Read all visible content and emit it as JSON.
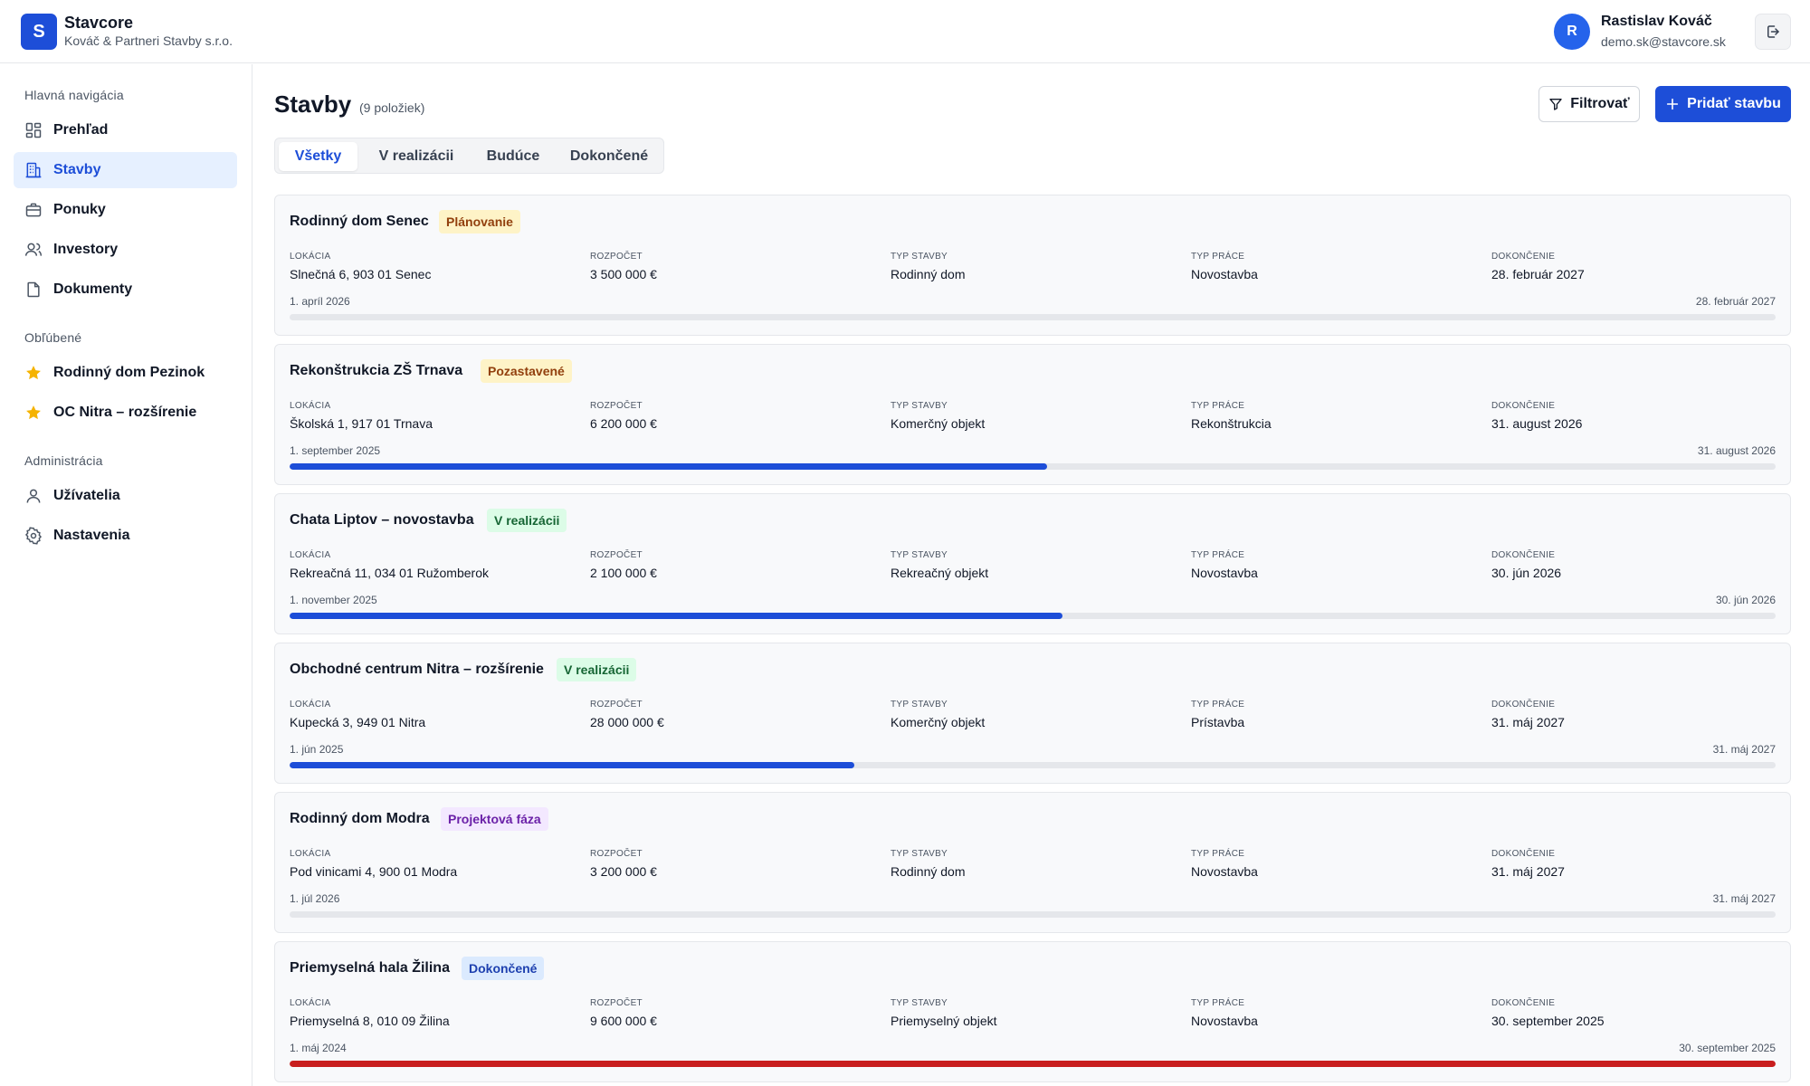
{
  "header": {
    "logo_letter": "S",
    "app_name": "Stavcore",
    "company": "Kováč & Partneri Stavby s.r.o.",
    "user_initial": "R",
    "user_name": "Rastislav Kováč",
    "user_email": "demo.sk@stavcore.sk",
    "logout_icon": "logout-icon"
  },
  "sidebar": {
    "sections": [
      {
        "label": "Hlavná navigácia",
        "items": [
          {
            "label": "Prehľad",
            "icon": "dashboard-icon",
            "active": false
          },
          {
            "label": "Stavby",
            "icon": "building-icon",
            "active": true
          },
          {
            "label": "Ponuky",
            "icon": "briefcase-icon",
            "active": false
          },
          {
            "label": "Investory",
            "icon": "users-icon",
            "active": false
          },
          {
            "label": "Dokumenty",
            "icon": "document-icon",
            "active": false
          }
        ]
      },
      {
        "label": "Obľúbené",
        "items": [
          {
            "label": "Rodinný dom Pezinok",
            "icon": "star-icon",
            "active": false
          },
          {
            "label": "OC Nitra – rozšírenie",
            "icon": "star-icon",
            "active": false
          }
        ]
      },
      {
        "label": "Administrácia",
        "items": [
          {
            "label": "Užívatelia",
            "icon": "user-icon",
            "active": false
          },
          {
            "label": "Nastavenia",
            "icon": "gear-icon",
            "active": false
          }
        ]
      }
    ]
  },
  "main": {
    "title": "Stavby",
    "count": "(9 položiek)",
    "filter_label": "Filtrovať",
    "add_label": "Pridať stavbu",
    "tabs": [
      {
        "label": "Všetky",
        "active": true
      },
      {
        "label": "V realizácii",
        "active": false
      },
      {
        "label": "Budúce",
        "active": false
      },
      {
        "label": "Dokončené",
        "active": false
      }
    ],
    "field_labels": {
      "location": "LOKÁCIA",
      "budget": "ROZPOČET",
      "building_type": "TYP STAVBY",
      "work_type": "TYP PRÁCE",
      "completion": "DOKONČENIE"
    },
    "projects": [
      {
        "name": "Rodinný dom Senec",
        "status": "Plánovanie",
        "status_bg": "#fef3c7",
        "status_color": "#92400e",
        "location": "Slnečná 6, 903 01 Senec",
        "budget": "3 500 000 €",
        "building_type": "Rodinný dom",
        "work_type": "Novostavba",
        "completion": "28. február 2027",
        "start": "1. apríl 2026",
        "end": "28. február 2027",
        "progress": 0,
        "progress_color": "#1d4ed8"
      },
      {
        "name": "Rekonštrukcia ZŠ Trnava",
        "status": "Pozastavené",
        "status_bg": "#fef3c7",
        "status_color": "#92400e",
        "location": "Školská 1, 917 01 Trnava",
        "budget": "6 200 000 €",
        "building_type": "Komerčný objekt",
        "work_type": "Rekonštrukcia",
        "completion": "31. august 2026",
        "start": "1. september 2025",
        "end": "31. august 2026",
        "progress": 0.51,
        "progress_color": "#1d4ed8"
      },
      {
        "name": "Chata Liptov – novostavba",
        "status": "V realizácii",
        "status_bg": "#dcfce7",
        "status_color": "#166534",
        "location": "Rekreačná 11, 034 01 Ružomberok",
        "budget": "2 100 000 €",
        "building_type": "Rekreačný objekt",
        "work_type": "Novostavba",
        "completion": "30. jún 2026",
        "start": "1. november 2025",
        "end": "30. jún 2026",
        "progress": 0.52,
        "progress_color": "#1d4ed8"
      },
      {
        "name": "Obchodné centrum Nitra – rozšírenie",
        "status": "V realizácii",
        "status_bg": "#dcfce7",
        "status_color": "#166534",
        "location": "Kupecká 3, 949 01 Nitra",
        "budget": "28 000 000 €",
        "building_type": "Komerčný objekt",
        "work_type": "Prístavba",
        "completion": "31. máj 2027",
        "start": "1. jún 2025",
        "end": "31. máj 2027",
        "progress": 0.38,
        "progress_color": "#1d4ed8"
      },
      {
        "name": "Rodinný dom Modra",
        "status": "Projektová fáza",
        "status_bg": "#f3e8ff",
        "status_color": "#6b21a8",
        "location": "Pod vinicami 4, 900 01 Modra",
        "budget": "3 200 000 €",
        "building_type": "Rodinný dom",
        "work_type": "Novostavba",
        "completion": "31. máj 2027",
        "start": "1. júl 2026",
        "end": "31. máj 2027",
        "progress": 0,
        "progress_color": "#1d4ed8"
      },
      {
        "name": "Priemyselná hala Žilina",
        "status": "Dokončené",
        "status_bg": "#dbeafe",
        "status_color": "#1e40af",
        "location": "Priemyselná 8, 010 09 Žilina",
        "budget": "9 600 000 €",
        "building_type": "Priemyselný objekt",
        "work_type": "Novostavba",
        "completion": "30. september 2025",
        "start": "1. máj 2024",
        "end": "30. september 2025",
        "progress": 1,
        "progress_color": "#c81e1e"
      }
    ]
  }
}
